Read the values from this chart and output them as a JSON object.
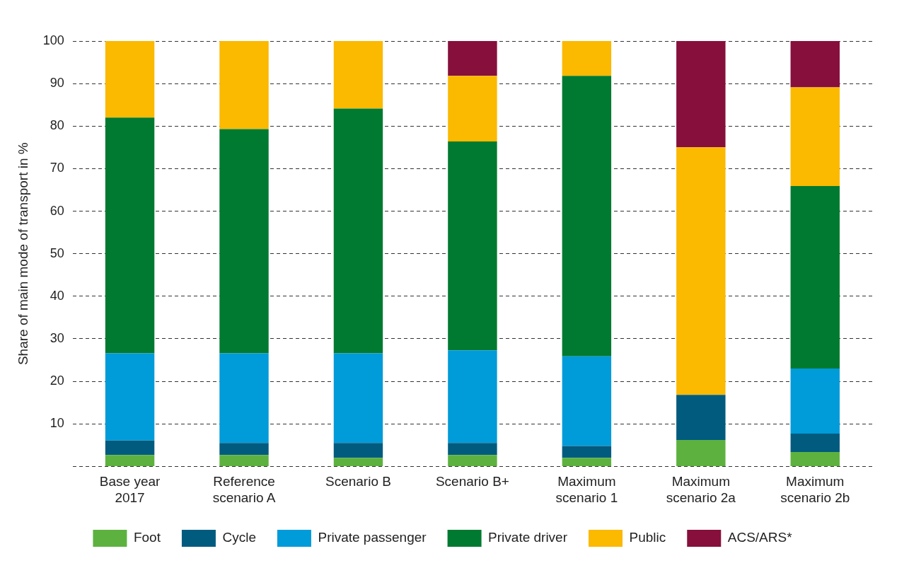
{
  "chart_data": {
    "type": "bar",
    "stacked": true,
    "ylabel": "Share of main mode of transport in %",
    "categories": [
      "Base year 2017",
      "Reference scenario A",
      "Scenario B",
      "Scenario B+",
      "Maximum scenario 1",
      "Maximum scenario 2a",
      "Maximum scenario 2b"
    ],
    "series": [
      {
        "name": "Foot",
        "color": "#5db23f",
        "values": [
          2.7,
          2.7,
          2.0,
          2.7,
          2.0,
          6.2,
          3.4
        ]
      },
      {
        "name": "Cycle",
        "color": "#005b7f",
        "values": [
          3.4,
          2.8,
          3.5,
          2.8,
          2.8,
          10.6,
          4.3
        ]
      },
      {
        "name": "Private passenger",
        "color": "#009bd9",
        "values": [
          20.5,
          21.1,
          21.1,
          21.8,
          21.1,
          0,
          15.3
        ]
      },
      {
        "name": "Private driver",
        "color": "#007a30",
        "values": [
          55.4,
          52.7,
          57.5,
          49.1,
          65.9,
          0,
          42.9
        ]
      },
      {
        "name": "Public",
        "color": "#fbb900",
        "values": [
          18.0,
          20.7,
          15.9,
          15.4,
          8.2,
          58.2,
          23.2
        ]
      },
      {
        "name": "ACS/ARS*",
        "color": "#870f3c",
        "values": [
          null,
          null,
          null,
          8.2,
          null,
          25.0,
          10.9
        ]
      }
    ],
    "ylim": [
      0,
      100
    ],
    "yticks": [
      {
        "value": 0,
        "label": null
      },
      10,
      20,
      30,
      40,
      50,
      60,
      70,
      80,
      90,
      100
    ],
    "grid": "y",
    "legend": "bottom"
  }
}
